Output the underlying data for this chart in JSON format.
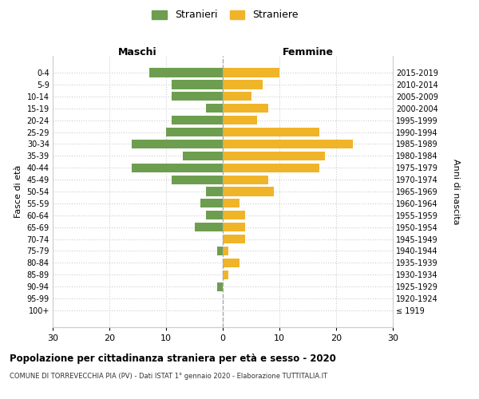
{
  "age_groups": [
    "100+",
    "95-99",
    "90-94",
    "85-89",
    "80-84",
    "75-79",
    "70-74",
    "65-69",
    "60-64",
    "55-59",
    "50-54",
    "45-49",
    "40-44",
    "35-39",
    "30-34",
    "25-29",
    "20-24",
    "15-19",
    "10-14",
    "5-9",
    "0-4"
  ],
  "birth_years": [
    "≤ 1919",
    "1920-1924",
    "1925-1929",
    "1930-1934",
    "1935-1939",
    "1940-1944",
    "1945-1949",
    "1950-1954",
    "1955-1959",
    "1960-1964",
    "1965-1969",
    "1970-1974",
    "1975-1979",
    "1980-1984",
    "1985-1989",
    "1990-1994",
    "1995-1999",
    "2000-2004",
    "2005-2009",
    "2010-2014",
    "2015-2019"
  ],
  "males": [
    0,
    0,
    1,
    0,
    0,
    1,
    0,
    5,
    3,
    4,
    3,
    9,
    16,
    7,
    16,
    10,
    9,
    3,
    9,
    9,
    13
  ],
  "females": [
    0,
    0,
    0,
    1,
    3,
    1,
    4,
    4,
    4,
    3,
    9,
    8,
    17,
    18,
    23,
    17,
    6,
    8,
    5,
    7,
    10
  ],
  "male_color": "#6d9e4f",
  "female_color": "#f0b429",
  "background_color": "#ffffff",
  "grid_color": "#cccccc",
  "title": "Popolazione per cittadinanza straniera per età e sesso - 2020",
  "subtitle": "COMUNE DI TORREVECCHIA PIA (PV) - Dati ISTAT 1° gennaio 2020 - Elaborazione TUTTITALIA.IT",
  "xlabel_left": "Maschi",
  "xlabel_right": "Femmine",
  "ylabel_left": "Fasce di età",
  "ylabel_right": "Anni di nascita",
  "legend_male": "Stranieri",
  "legend_female": "Straniere",
  "xlim": 30
}
